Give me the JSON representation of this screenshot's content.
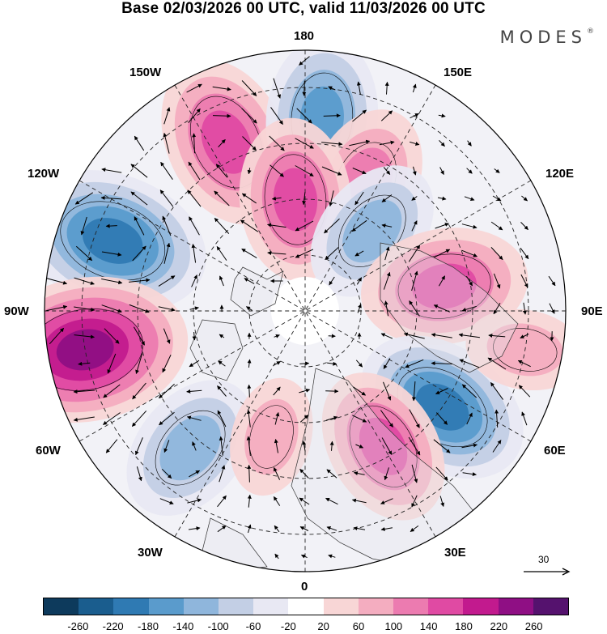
{
  "title": "Base 02/03/2026 00 UTC, valid 11/03/2026 00 UTC",
  "brand": "MODES",
  "brand_mark": "®",
  "longitude_labels": {
    "top": "180",
    "bottom": "0",
    "left": "90W",
    "right": "90E",
    "upper_left": "150W",
    "upper_right": "150E",
    "mid_left": "120W",
    "mid_right": "120E",
    "lower_left": "60W",
    "lower_right": "60E",
    "bottom_left": "30W",
    "bottom_right": "30E"
  },
  "reference_vector": {
    "value": "30"
  },
  "colorbar": {
    "colors": [
      "#0d3a5c",
      "#1a5d8e",
      "#2f7ab3",
      "#5a9bcc",
      "#8fb6dc",
      "#c3cfe5",
      "#e8e8f3",
      "#ffffff",
      "#f8d6d6",
      "#f4adc0",
      "#ec7bb0",
      "#e04aa3",
      "#c21a8e",
      "#8f0f84",
      "#55126e"
    ],
    "tick_labels": [
      "-260",
      "-220",
      "-180",
      "-140",
      "-100",
      "-60",
      "-20",
      "20",
      "60",
      "100",
      "140",
      "180",
      "220",
      "260"
    ]
  },
  "anomaly_centers": [
    {
      "lon": -155,
      "lat": 40,
      "value": 170
    },
    {
      "lon": 175,
      "lat": 38,
      "value": -150
    },
    {
      "lon": 155,
      "lat": 52,
      "value": 130
    },
    {
      "lon": -175,
      "lat": 60,
      "value": 150
    },
    {
      "lon": 140,
      "lat": 62,
      "value": -120
    },
    {
      "lon": -110,
      "lat": 35,
      "value": -210
    },
    {
      "lon": 100,
      "lat": 52,
      "value": 160
    },
    {
      "lon": -80,
      "lat": 30,
      "value": 240
    },
    {
      "lon": 55,
      "lat": 45,
      "value": -180
    },
    {
      "lon": -40,
      "lat": 42,
      "value": -130
    },
    {
      "lon": 30,
      "lat": 48,
      "value": 140
    },
    {
      "lon": -15,
      "lat": 55,
      "value": 60
    },
    {
      "lon": 80,
      "lat": 30,
      "value": 60
    }
  ]
}
